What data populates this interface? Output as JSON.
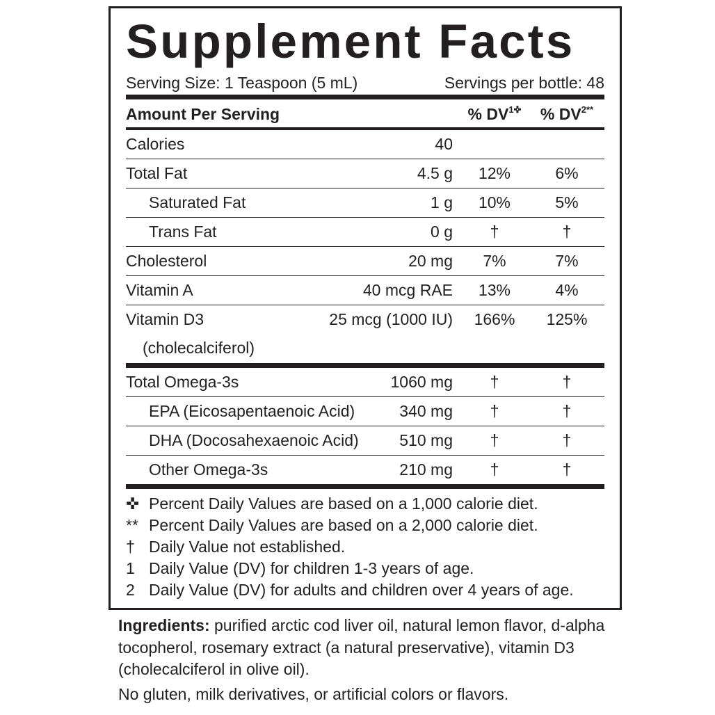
{
  "title": "Supplement Facts",
  "serving_size": "Serving Size: 1 Teaspoon (5 mL)",
  "servings_per": "Servings per bottle: 48",
  "header": {
    "amount": "Amount Per Serving",
    "dv1": "% DV",
    "dv1_sup": "1✜",
    "dv2": "% DV",
    "dv2_sup": "2**"
  },
  "rows": [
    {
      "name": "Calories",
      "amount": "40",
      "dv1": "",
      "dv2": ""
    },
    {
      "name": "Total Fat",
      "amount": "4.5 g",
      "dv1": "12%",
      "dv2": "6%"
    },
    {
      "name": "Saturated Fat",
      "amount": "1 g",
      "dv1": "10%",
      "dv2": "5%"
    },
    {
      "name": "Trans Fat",
      "amount": "0 g",
      "dv1": "†",
      "dv2": "†"
    },
    {
      "name": "Cholesterol",
      "amount": "20 mg",
      "dv1": "7%",
      "dv2": "7%"
    },
    {
      "name": "Vitamin A",
      "amount": "40 mcg RAE",
      "dv1": "13%",
      "dv2": "4%"
    },
    {
      "name": "Vitamin D3",
      "name2": "(cholecalciferol)",
      "amount": "25 mcg (1000 IU)",
      "dv1": "166%",
      "dv2": "125%"
    }
  ],
  "omega": [
    {
      "name": "Total Omega-3s",
      "amount": "1060 mg",
      "dv1": "†",
      "dv2": "†"
    },
    {
      "name": "EPA (Eicosapentaenoic Acid)",
      "amount": "340 mg",
      "dv1": "†",
      "dv2": "†"
    },
    {
      "name": "DHA (Docosahexaenoic Acid)",
      "amount": "510 mg",
      "dv1": "†",
      "dv2": "†"
    },
    {
      "name": "Other Omega-3s",
      "amount": "210 mg",
      "dv1": "†",
      "dv2": "†"
    }
  ],
  "footnotes": [
    {
      "sym": "✜",
      "text": "Percent Daily Values are based on a 1,000 calorie diet."
    },
    {
      "sym": "**",
      "text": "Percent Daily Values are based on a 2,000 calorie diet."
    },
    {
      "sym": "†",
      "text": "Daily Value not established."
    },
    {
      "sym": "1",
      "text": "Daily Value (DV) for children 1-3 years of age."
    },
    {
      "sym": "2",
      "text": "Daily Value (DV) for adults and children over 4 years of age."
    }
  ],
  "ingredients": {
    "label": "Ingredients:",
    "text": " purified arctic cod liver oil, natural lemon flavor, d-alpha tocopherol, rosemary extract (a natural preservative), vitamin D3 (cholecalciferol in olive oil)."
  },
  "allergen": "No gluten, milk derivatives, or artificial colors or flavors."
}
